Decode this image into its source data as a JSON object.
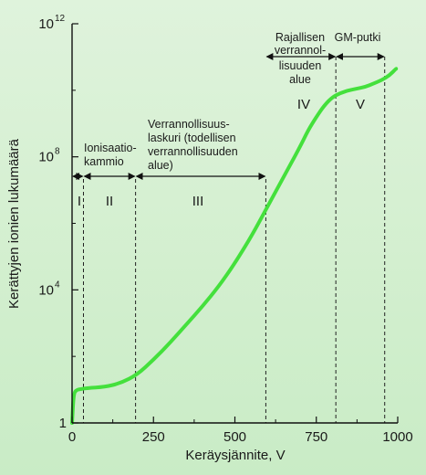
{
  "chart_data": {
    "type": "line",
    "xlabel": "Keräysjännite, V",
    "ylabel": "Kerättyjen ionien lukumäärä",
    "x_ticks": [
      "0",
      "250",
      "500",
      "750",
      "1000"
    ],
    "y_ticks": [
      {
        "base": "1",
        "exp": ""
      },
      {
        "base": "10",
        "exp": "4"
      },
      {
        "base": "10",
        "exp": "8"
      },
      {
        "base": "10",
        "exp": "12"
      }
    ],
    "xlim": [
      0,
      1000
    ],
    "ylim_log10": [
      0,
      12
    ],
    "y_scale": "log",
    "grid": false,
    "line_color": "#44e03c",
    "series": [
      {
        "x": [
          0,
          5,
          15,
          30,
          45,
          100,
          150,
          200,
          250,
          300,
          350,
          400,
          450,
          500,
          550,
          600,
          650,
          700,
          725,
          750,
          775,
          800,
          825,
          850,
          875,
          900,
          925,
          950,
          975,
          995
        ],
        "y_log10": [
          0,
          0.9,
          1.0,
          1.02,
          1.05,
          1.08,
          1.2,
          1.45,
          1.9,
          2.4,
          2.95,
          3.5,
          4.1,
          4.8,
          5.6,
          6.5,
          7.4,
          8.3,
          8.8,
          9.2,
          9.55,
          9.8,
          9.92,
          10.0,
          10.05,
          10.1,
          10.2,
          10.3,
          10.45,
          10.65
        ]
      }
    ],
    "boundaries": [
      35,
      195,
      595,
      810,
      960
    ],
    "regions": [
      {
        "roman": "I",
        "desc": []
      },
      {
        "roman": "II",
        "desc": [
          "Ionisaatio-",
          "kammio"
        ]
      },
      {
        "roman": "III",
        "desc": [
          "Verrannollisuus-",
          "laskuri (todellisen",
          "verrannollisuuden",
          "alue)"
        ]
      },
      {
        "roman": "IV",
        "desc": [
          "Rajallisen",
          "verrannol-",
          "lisuuden",
          "alue"
        ]
      },
      {
        "roman": "V",
        "desc": [
          "GM-putki"
        ]
      }
    ]
  }
}
